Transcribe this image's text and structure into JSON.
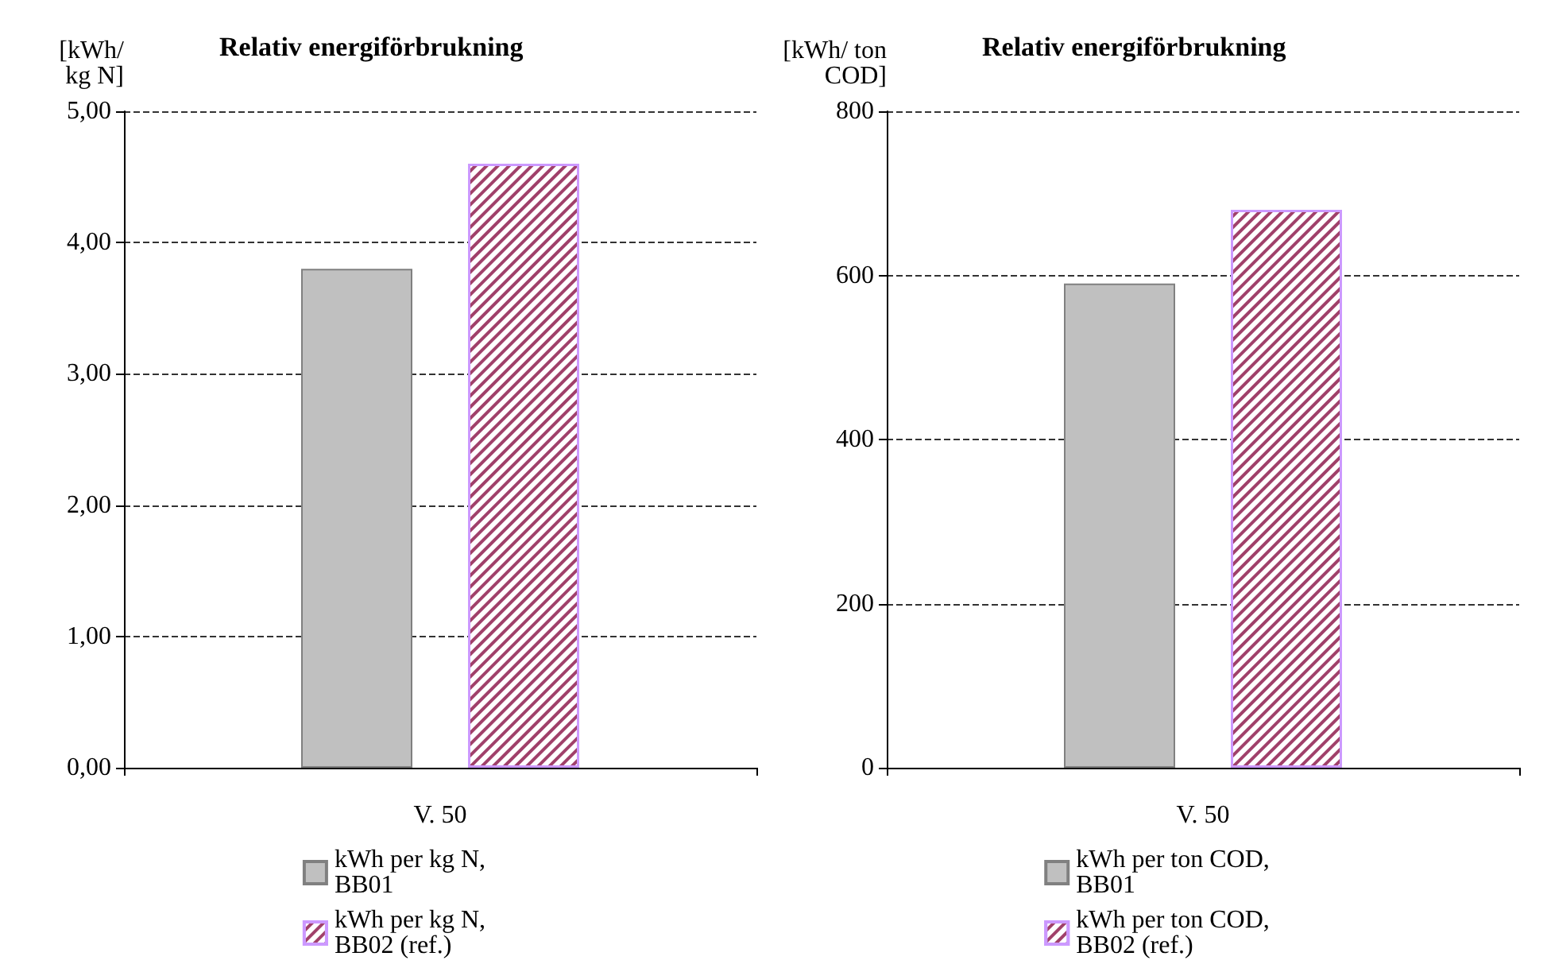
{
  "chart_data": [
    {
      "type": "bar",
      "title": "Relativ energiförbrukning",
      "ylabel": "[kWh/\n kg N]",
      "categories": [
        "V. 50"
      ],
      "series": [
        {
          "name": "kWh per kg N,\nBB01",
          "color": "#c0c0c0",
          "values": [
            3.8
          ]
        },
        {
          "name": "kWh per kg N,\nBB02 (ref.)",
          "color": "#a0406a",
          "values": [
            4.6
          ]
        }
      ],
      "ylim": [
        0,
        5
      ],
      "yticks": [
        {
          "value": 0,
          "label": "0,00"
        },
        {
          "value": 1,
          "label": "1,00"
        },
        {
          "value": 2,
          "label": "2,00"
        },
        {
          "value": 3,
          "label": "3,00"
        },
        {
          "value": 4,
          "label": "4,00"
        },
        {
          "value": 5,
          "label": "5,00"
        }
      ],
      "grid": "y",
      "line_style": "dashed",
      "legend": "bottom"
    },
    {
      "type": "bar",
      "title": "Relativ energiförbrukning",
      "ylabel": "[kWh/ ton\nCOD]",
      "categories": [
        "V. 50"
      ],
      "series": [
        {
          "name": "kWh per ton COD,\nBB01",
          "color": "#c0c0c0",
          "values": [
            590
          ]
        },
        {
          "name": "kWh per ton COD,\nBB02 (ref.)",
          "color": "#a0406a",
          "values": [
            680
          ]
        }
      ],
      "ylim": [
        0,
        800
      ],
      "yticks": [
        0,
        200,
        400,
        600,
        800
      ],
      "grid": "y",
      "line_style": "dashed",
      "legend": "bottom"
    }
  ]
}
